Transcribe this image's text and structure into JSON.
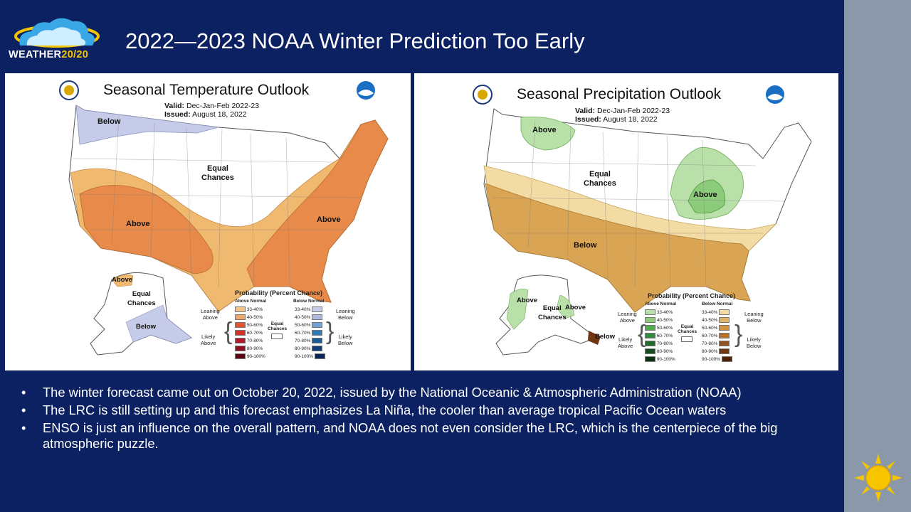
{
  "logo": {
    "name_main": "WEATHER",
    "name_accent": "20/20"
  },
  "title": "2022—2023 NOAA Winter Prediction Too Early",
  "temperature_map": {
    "title": "Seasonal Temperature Outlook",
    "valid_label": "Valid:",
    "valid_value": "Dec-Jan-Feb 2022-23",
    "issued_label": "Issued:",
    "issued_value": "August 18, 2022",
    "labels": {
      "below_nw": "Below",
      "equal_line1": "Equal",
      "equal_line2": "Chances",
      "above_west": "Above",
      "above_east": "Above",
      "above_ak": "Above",
      "ak_equal_line1": "Equal",
      "ak_equal_line2": "Chances",
      "below_ak": "Below"
    },
    "legend": {
      "title": "Probability (Percent Chance)",
      "above_head": "Above Normal",
      "below_head": "Below Normal",
      "rows": [
        "33-40%",
        "40-50%",
        "50-60%",
        "60-70%",
        "70-80%",
        "80-90%",
        "90-100%"
      ],
      "above_colors": [
        "#f4c58a",
        "#f0a868",
        "#e8532f",
        "#d73027",
        "#b2182b",
        "#8e0f1f",
        "#5c0613"
      ],
      "below_colors": [
        "#c7cde8",
        "#aebae0",
        "#6fa3d8",
        "#2c7bb6",
        "#1a5a98",
        "#123e79",
        "#0b2659"
      ],
      "leaning_above": [
        "Leaning",
        "Above"
      ],
      "likely_above": [
        "Likely",
        "Above"
      ],
      "leaning_below": [
        "Leaning",
        "Below"
      ],
      "likely_below": [
        "Likely",
        "Below"
      ],
      "equal_chances": [
        "Equal",
        "Chances"
      ]
    }
  },
  "precipitation_map": {
    "title": "Seasonal Precipitation Outlook",
    "valid_label": "Valid:",
    "valid_value": "Dec-Jan-Feb 2022-23",
    "issued_label": "Issued:",
    "issued_value": "August 18, 2022",
    "labels": {
      "above_nw": "Above",
      "equal_line1": "Equal",
      "equal_line2": "Chances",
      "above_greatlakes": "Above",
      "below_south": "Below",
      "above_ak_west": "Above",
      "ak_equal_line1": "Equal",
      "ak_equal_line2": "Chances",
      "above_ak_south": "Above",
      "below_ak": "Below"
    },
    "legend": {
      "title": "Probability (Percent Chance)",
      "above_head": "Above Normal",
      "below_head": "Below Normal",
      "rows": [
        "33-40%",
        "40-50%",
        "50-60%",
        "60-70%",
        "70-80%",
        "80-90%",
        "90-100%"
      ],
      "above_colors": [
        "#b9e0a8",
        "#8ccb7a",
        "#4fad4a",
        "#2f8a3a",
        "#1f6b2c",
        "#134d1f",
        "#0a3314"
      ],
      "below_colors": [
        "#f3dba4",
        "#e2b466",
        "#d4943b",
        "#b9722a",
        "#93521d",
        "#6f3612",
        "#4c2108"
      ],
      "leaning_above": [
        "Leaning",
        "Above"
      ],
      "likely_above": [
        "Likely",
        "Above"
      ],
      "leaning_below": [
        "Leaning",
        "Below"
      ],
      "likely_below": [
        "Likely",
        "Below"
      ],
      "equal_chances": [
        "Equal",
        "Chances"
      ]
    }
  },
  "colors": {
    "background": "#0b2161",
    "sidebar": "#8b98aa",
    "temp_lean_above": "#f0b970",
    "temp_likely_above": "#e88a4a",
    "temp_lean_below": "#c5cbe8",
    "precip_lean_above": "#b9e0a8",
    "precip_likely_above": "#8ccb7a",
    "precip_lean_below": "#f3dba4",
    "precip_likely_below": "#d9a454"
  },
  "bullets": [
    "The winter forecast came out on October 20, 2022, issued by the National Oceanic & Atmospheric Administration (NOAA)",
    "The LRC is still setting up and this forecast emphasizes La Niña, the cooler than average tropical Pacific Ocean waters",
    "ENSO is just an influence on the overall pattern, and NOAA does not even consider the LRC, which is the centerpiece of the big atmospheric puzzle."
  ]
}
